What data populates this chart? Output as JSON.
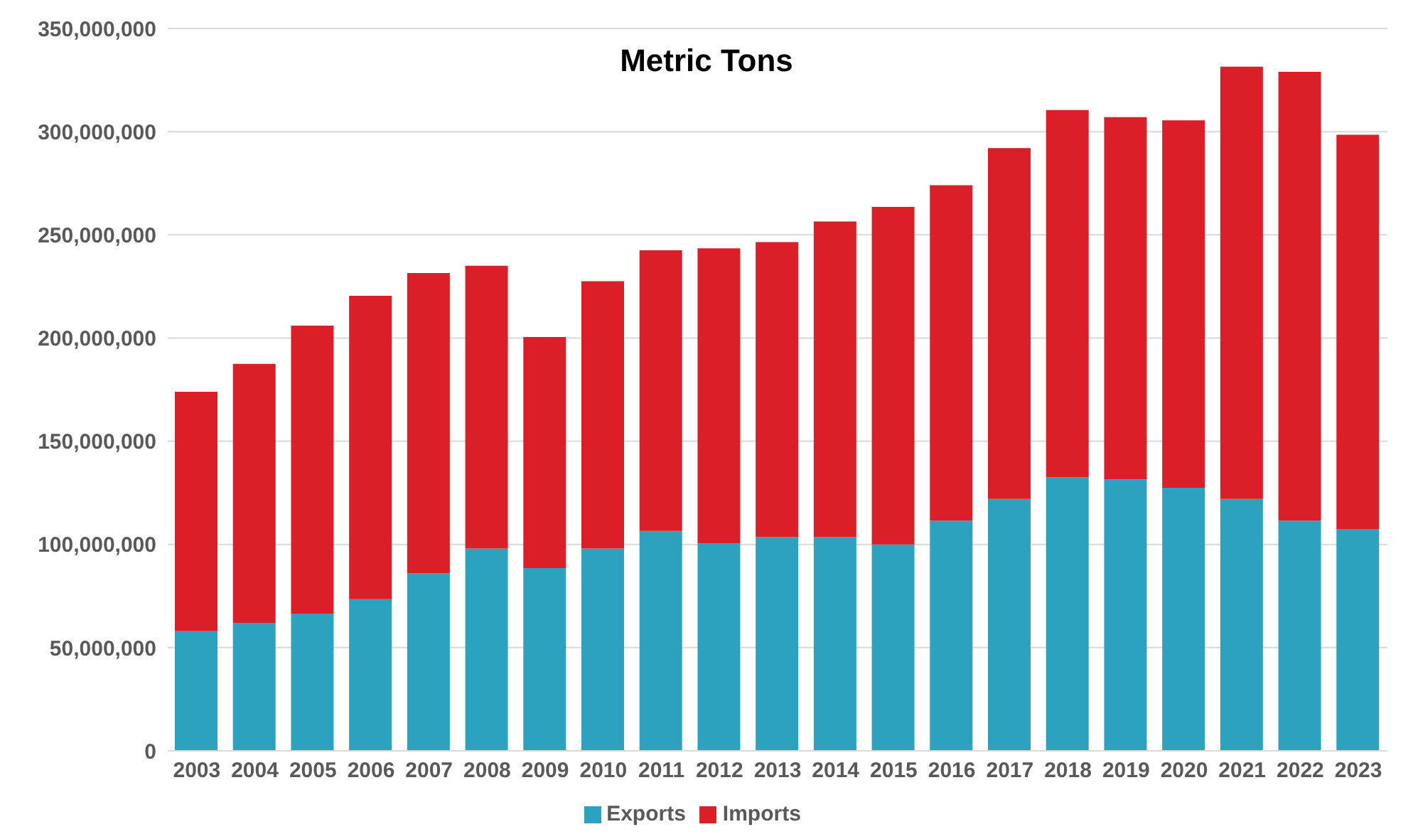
{
  "chart_data": {
    "type": "bar",
    "title": "Metric Tons",
    "stacked": true,
    "categories": [
      "2003",
      "2004",
      "2005",
      "2006",
      "2007",
      "2008",
      "2009",
      "2010",
      "2011",
      "2012",
      "2013",
      "2014",
      "2015",
      "2016",
      "2017",
      "2018",
      "2019",
      "2020",
      "2021",
      "2022",
      "2023"
    ],
    "series": [
      {
        "name": "Exports",
        "color": "#2ca2bf",
        "values": [
          58000000,
          62000000,
          66500000,
          73500000,
          86000000,
          98000000,
          88500000,
          98000000,
          106500000,
          100500000,
          103500000,
          103500000,
          100000000,
          111500000,
          122000000,
          132500000,
          131500000,
          127500000,
          122000000,
          111500000,
          107500000
        ]
      },
      {
        "name": "Imports",
        "color": "#da1f28",
        "values": [
          116000000,
          125500000,
          139500000,
          147000000,
          145500000,
          137000000,
          112000000,
          129500000,
          136000000,
          143000000,
          143000000,
          153000000,
          163500000,
          162500000,
          170000000,
          178000000,
          175500000,
          178000000,
          209500000,
          217500000,
          191000000
        ]
      }
    ],
    "ylim": [
      0,
      350000000
    ],
    "yticks": [
      0,
      {
        "value": 50000000,
        "label": "50,000,000"
      },
      {
        "value": 100000000,
        "label": "100,000,000"
      },
      {
        "value": 150000000,
        "label": "150,000,000"
      },
      {
        "value": 200000000,
        "label": "200,000,000"
      },
      {
        "value": 250000000,
        "label": "250,000,000"
      },
      {
        "value": 300000000,
        "label": "300,000,000"
      },
      {
        "value": 350000000,
        "label": "350,000,000"
      }
    ],
    "grid": "y",
    "legend": "bottom"
  }
}
